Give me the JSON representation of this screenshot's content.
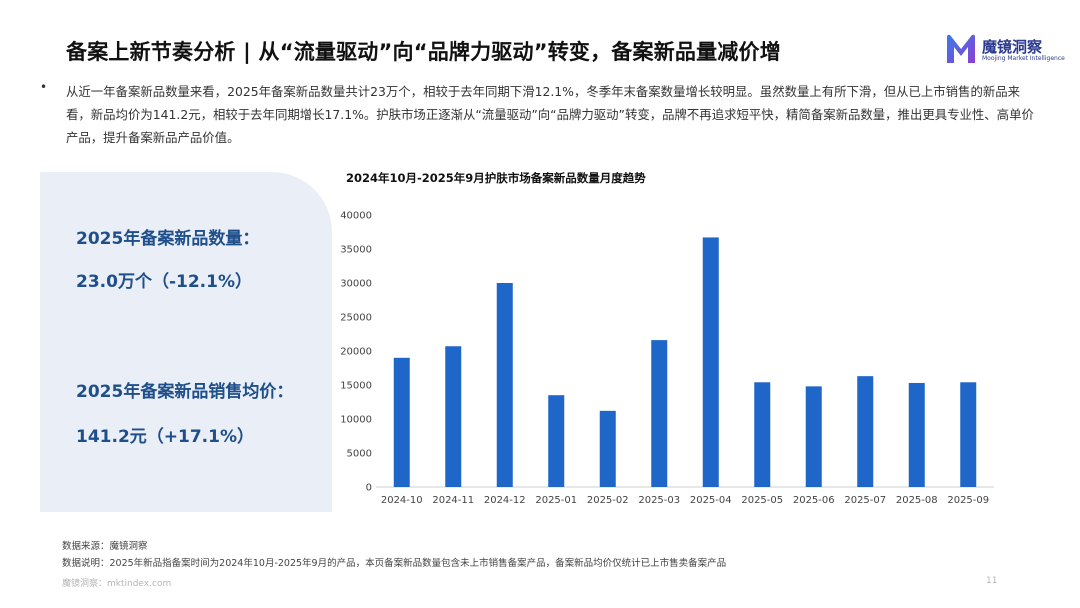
{
  "slide": {
    "title": "备案上新节奏分析 | 从“流量驱动”向“品牌力驱动”转变，备案新品量减价增",
    "logo_name": "魔镜洞察",
    "logo_sub": "Moojing Market Intelligence",
    "bullet": "•",
    "paragraph": "从近一年备案新品数量来看，2025年备案新品数量共计23万个，相较于去年同期下滑12.1%，冬季年末备案数量增长较明显。虽然数量上有所下滑，但从已上市销售的新品来看，新品均价为141.2元，相较于去年同期增长17.1%。护肤市场正逐渐从“流量驱动”向“品牌力驱动”转变，品牌不再追求短平快，精简备案新品数量，推出更具专业性、高单价产品，提升备案新品产品价值。",
    "kpi1_label": "2025年备案新品数量：",
    "kpi1_value": "23.0万个（-12.1%）",
    "kpi2_label": "2025年备案新品销售均价：",
    "kpi2_value": "141.2元（+17.1%）",
    "source_note": "数据来源：魔镜洞察",
    "data_note": "数据说明：2025年新品指备案时间为2024年10月-2025年9月的产品，本页备案新品数量包含未上市销售备案产品，备案新品均价仅统计已上市售卖备案产品",
    "footer_url": "魔镜洞察：mktindex.com",
    "page_number": "11",
    "colors": {
      "bar": "#1f66c9",
      "kpi": "#1f4f8a",
      "panel": "#e9eef7"
    }
  },
  "chart_data": {
    "type": "bar",
    "title": "2024年10月-2025年9月护肤市场备案新品数量月度趋势",
    "categories": [
      "2024-10",
      "2024-11",
      "2024-12",
      "2025-01",
      "2025-02",
      "2025-03",
      "2025-04",
      "2025-05",
      "2025-06",
      "2025-07",
      "2025-08",
      "2025-09"
    ],
    "values": [
      19000,
      20700,
      30000,
      13500,
      11200,
      21600,
      36700,
      15400,
      14800,
      16300,
      15300,
      15400
    ],
    "ylim": [
      0,
      40000
    ],
    "yticks": [
      0,
      5000,
      10000,
      15000,
      20000,
      25000,
      30000,
      35000,
      40000
    ],
    "xlabel": "",
    "ylabel": "",
    "grid": false,
    "legend": "none"
  }
}
